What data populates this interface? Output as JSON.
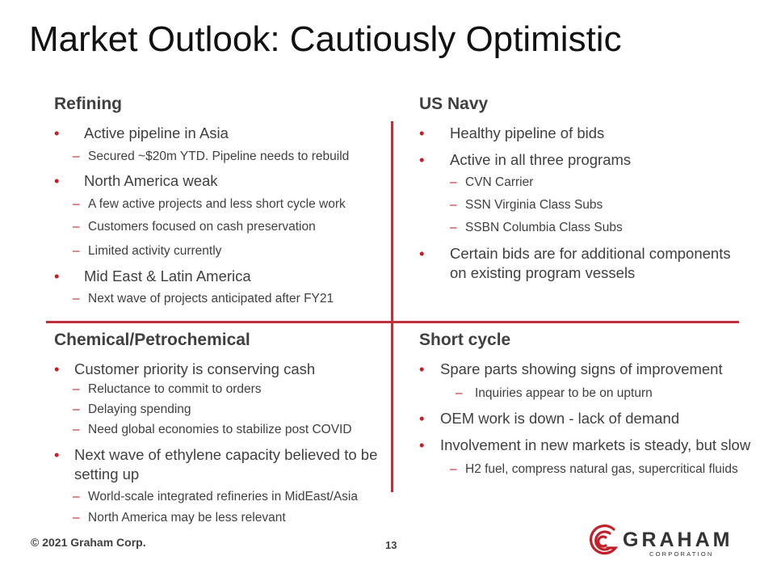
{
  "title": "Market Outlook: Cautiously Optimistic",
  "refining": {
    "heading": "Refining",
    "b1": "Active pipeline in Asia",
    "b1_sub1": "Secured ~$20m YTD.  Pipeline needs to rebuild",
    "b2": "North America weak",
    "b2_sub1": "A few active projects and less short cycle work",
    "b2_sub2": "Customers focused on cash preservation",
    "b2_sub3": "Limited activity currently",
    "b3": "Mid East & Latin America",
    "b3_sub1": "Next wave of projects anticipated after FY21"
  },
  "navy": {
    "heading": "US Navy",
    "b1": "Healthy pipeline of bids",
    "b2": "Active in all three programs",
    "b2_sub1": "CVN Carrier",
    "b2_sub2": "SSN Virginia Class Subs",
    "b2_sub3": "SSBN Columbia Class Subs",
    "b3_line1": "Certain bids are for additional components",
    "b3_line2": "on existing program vessels"
  },
  "chemical": {
    "heading": "Chemical/Petrochemical",
    "b1": "Customer priority is conserving cash",
    "b1_sub1": "Reluctance to commit to orders",
    "b1_sub2": "Delaying spending",
    "b1_sub3": "Need global economies to stabilize post COVID",
    "b2_line1": "Next wave of ethylene capacity believed to be",
    "b2_line2": "setting up",
    "b2_sub1": "World-scale integrated refineries in MidEast/Asia",
    "b2_sub2": "North America may be less relevant"
  },
  "short_cycle": {
    "heading": "Short cycle",
    "b1": "Spare parts showing signs of improvement",
    "b1_sub1": "Inquiries appear to be on upturn",
    "b2": "OEM work is down - lack of demand",
    "b3": "Involvement in new markets is steady, but slow",
    "b3_sub1": "H2 fuel, compress natural gas, supercritical fluids"
  },
  "footer": {
    "copyright": "© 2021 Graham Corp.",
    "page_number": "13"
  },
  "logo": {
    "name": "GRAHAM",
    "subtitle": "CORPORATION",
    "brand_color": "#c0202a"
  },
  "bullet_glyph": "•",
  "dash_glyph": "–",
  "accent_color": "#c0303a"
}
